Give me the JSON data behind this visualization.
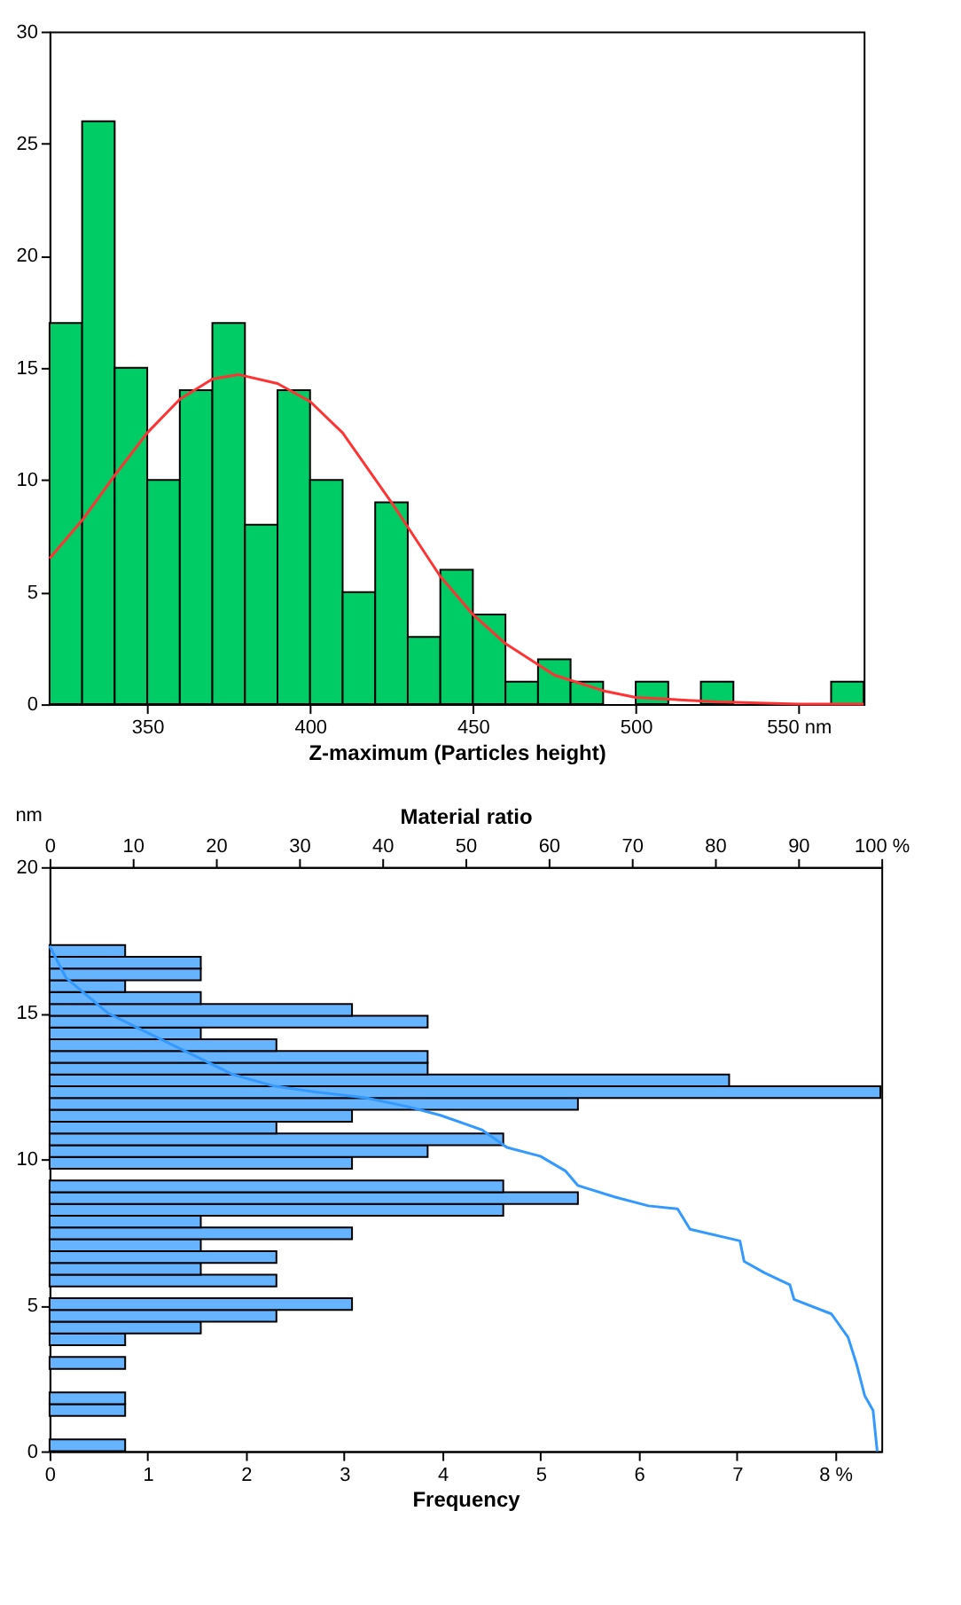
{
  "chart_data": [
    {
      "type": "histogram",
      "xlabel": "Z-maximum (Particles height)",
      "bins": [
        320,
        330,
        340,
        350,
        360,
        370,
        380,
        390,
        400,
        410,
        420,
        430,
        440,
        450,
        460,
        470,
        480,
        490,
        500,
        510,
        520,
        530,
        540,
        550,
        560,
        570
      ],
      "values": [
        17,
        26,
        15,
        10,
        14,
        17,
        8,
        14,
        10,
        5,
        9,
        3,
        6,
        4,
        1,
        2,
        1,
        0,
        1,
        0,
        1,
        0,
        0,
        0,
        1
      ],
      "color": "#00cc66",
      "series": [
        {
          "type": "line",
          "color": "#ff3333",
          "x": [
            320,
            330,
            340,
            350,
            360,
            370,
            378,
            390,
            400,
            410,
            425,
            440,
            450,
            460,
            475,
            490,
            500,
            525,
            550,
            570
          ],
          "values": [
            6.5,
            8.2,
            10.2,
            12.1,
            13.6,
            14.5,
            14.7,
            14.3,
            13.5,
            12.1,
            9.0,
            5.7,
            4.0,
            2.7,
            1.3,
            0.6,
            0.3,
            0.1,
            0,
            0
          ]
        }
      ],
      "xlim": [
        320,
        570
      ],
      "xticks": [
        350,
        400,
        450,
        500,
        {
          "value": 550,
          "label": "550 nm"
        }
      ],
      "ylim": [
        0,
        30
      ],
      "yticks": [
        0,
        5,
        10,
        15,
        20,
        25,
        30
      ],
      "grid": false
    },
    {
      "type": "histogram",
      "orientation": "horizontal",
      "xlabel": "Frequency",
      "x2label": "Material ratio",
      "ylabel": "nm",
      "bins": [
        0,
        0.403,
        0.806,
        1.209,
        1.612,
        2.015,
        2.418,
        2.821,
        3.224,
        3.627,
        4.03,
        4.433,
        4.836,
        5.239,
        5.642,
        6.045,
        6.448,
        6.851,
        7.254,
        7.657,
        8.06,
        8.463,
        8.866,
        9.269,
        9.672,
        10.075,
        10.478,
        10.881,
        11.284,
        11.687,
        12.09,
        12.493,
        12.896,
        13.299,
        13.702,
        14.105,
        14.508,
        14.911,
        15.314,
        15.717,
        16.12,
        16.523,
        16.926,
        17.329
      ],
      "values": [
        0.77,
        0,
        0,
        0.77,
        0.77,
        0,
        0,
        0.77,
        0,
        0.77,
        1.54,
        2.31,
        3.08,
        0,
        2.31,
        1.54,
        2.31,
        1.54,
        3.08,
        1.54,
        4.62,
        5.38,
        4.62,
        0,
        3.08,
        3.85,
        4.62,
        2.31,
        3.08,
        5.38,
        8.46,
        6.92,
        3.85,
        3.85,
        2.31,
        1.54,
        3.85,
        3.08,
        1.54,
        0.77,
        1.54,
        1.54,
        0.77
      ],
      "color": "#66b3ff",
      "series": [
        {
          "type": "line",
          "axis": "x2",
          "color": "#3399ff",
          "values": [
            0,
            2,
            7,
            12,
            17,
            22,
            27,
            32,
            38,
            43,
            47,
            52,
            55,
            59,
            62,
            63.5,
            68,
            72,
            75.5,
            77,
            83,
            83.5,
            86,
            89,
            89.5,
            94,
            96,
            97,
            98,
            99,
            99.5
          ],
          "x": [
            17.3,
            16.2,
            15.0,
            14.3,
            13.6,
            12.9,
            12.5,
            12.3,
            12.1,
            11.8,
            11.5,
            11.0,
            10.4,
            10.1,
            9.6,
            9.1,
            8.7,
            8.4,
            8.3,
            7.6,
            7.2,
            6.5,
            6.1,
            5.7,
            5.2,
            4.7,
            3.9,
            3.0,
            1.9,
            1.4,
            0
          ]
        }
      ],
      "xlim": [
        0,
        8.47
      ],
      "xticks": [
        0,
        1,
        2,
        3,
        4,
        5,
        6,
        7,
        {
          "value": 8,
          "label": "8 %"
        }
      ],
      "x2lim": [
        0,
        100
      ],
      "x2ticks": [
        0,
        10,
        20,
        30,
        40,
        50,
        60,
        70,
        80,
        90,
        {
          "value": 100,
          "label": "100 %"
        }
      ],
      "ylim": [
        0,
        20
      ],
      "yticks": [
        0,
        5,
        10,
        15,
        20
      ],
      "grid": false
    }
  ]
}
